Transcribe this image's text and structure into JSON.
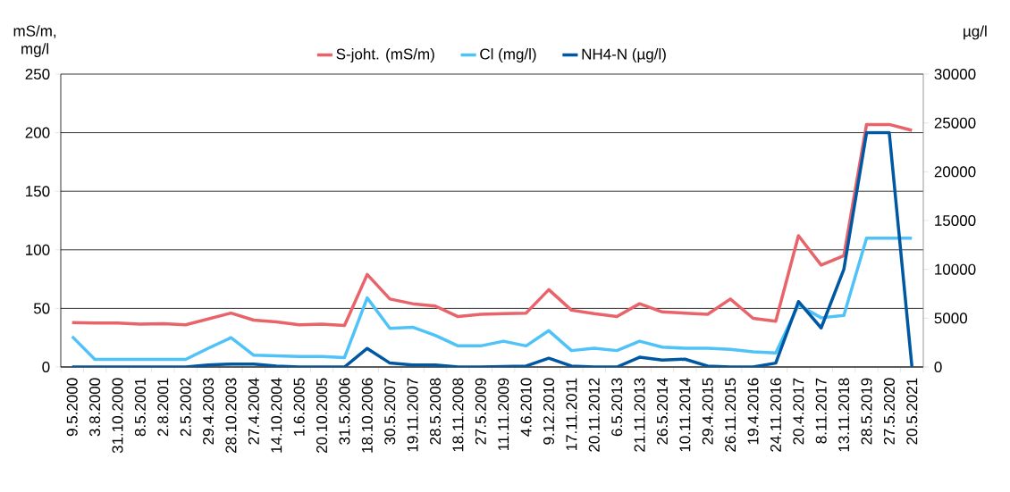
{
  "chart_data": {
    "type": "line",
    "ylabel": "mS/m, mg/l",
    "y2label": "µg/l",
    "categories": [
      "9.5.2000",
      "3.8.2000",
      "31.10.2000",
      "8.5.2001",
      "2.8.2001",
      "2.5.2002",
      "29.4.2003",
      "28.10.2003",
      "27.4.2004",
      "14.10.2004",
      "1.6.2005",
      "20.10.2005",
      "31.5.2006",
      "18.10.2006",
      "30.5.2007",
      "19.11.2007",
      "28.5.2008",
      "18.11.2008",
      "27.5.2009",
      "11.11.2009",
      "4.6.2010",
      "9.12.2010",
      "17.11.2011",
      "20.11.2012",
      "6.5.2013",
      "21.11.2013",
      "26.5.2014",
      "10.11.2014",
      "29.4.2015",
      "26.11.2015",
      "19.4.2016",
      "24.11.2016",
      "20.4.2017",
      "8.11.2017",
      "13.11.2018",
      "28.5.2019",
      "27.5.2020",
      "20.5.2021"
    ],
    "series": [
      {
        "name": "S-joht. (mS/m)",
        "color": "#e8636a",
        "values": [
          38,
          37.5,
          37.5,
          36.5,
          37,
          36,
          41,
          46,
          40,
          38.5,
          36,
          36.5,
          35.5,
          79,
          58,
          54,
          52,
          43,
          45,
          45.5,
          46,
          66,
          48.5,
          45.5,
          43,
          54,
          47,
          46,
          45,
          58,
          41.5,
          39,
          112,
          87,
          95,
          207,
          207,
          202
        ]
      },
      {
        "name": "Cl (mg/l)",
        "color": "#4fc3f7",
        "values": [
          26,
          6.5,
          6.5,
          6.5,
          6.5,
          6.5,
          16,
          25,
          10,
          9.5,
          9,
          9,
          8,
          59,
          33,
          34,
          27,
          18,
          18,
          22,
          18,
          31,
          14,
          16,
          14,
          22,
          17,
          16,
          16,
          15,
          13,
          12,
          53,
          42,
          44,
          110,
          110,
          110
        ]
      },
      {
        "name": "NH4-N (µg/l)",
        "color": "#0058a3",
        "axis": "y2",
        "values": [
          0,
          0,
          0,
          0,
          0,
          0,
          200,
          300,
          300,
          100,
          0,
          0,
          0,
          1900,
          400,
          200,
          200,
          0,
          0,
          50,
          100,
          900,
          100,
          0,
          0,
          1000,
          700,
          800,
          100,
          0,
          0,
          400,
          6700,
          4000,
          10000,
          24000,
          24000,
          0
        ]
      }
    ],
    "ylim": [
      0,
      250
    ],
    "yticks": [
      0,
      50,
      100,
      150,
      200,
      250
    ],
    "y2lim": [
      0,
      30000
    ],
    "y2ticks": [
      0,
      5000,
      10000,
      15000,
      20000,
      25000,
      30000
    ],
    "grid": "y",
    "legend": "top",
    "marker": "none",
    "line_style": "solid"
  }
}
